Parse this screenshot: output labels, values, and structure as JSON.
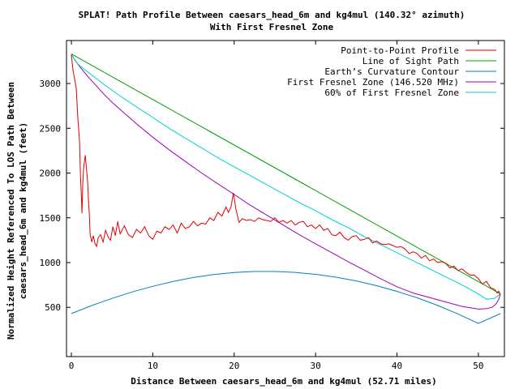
{
  "chart_data": {
    "type": "line",
    "title_line1": "SPLAT! Path Profile Between caesars_head_6m and kg4mul (140.32° azimuth)",
    "title_line2": "With First Fresnel Zone",
    "xlabel": "Distance Between caesars_head_6m and kg4mul (52.71 miles)",
    "ylabel_line1": "Normalized Height Referenced To LOS Path Between",
    "ylabel_line2": "caesars_head_6m and kg4mul (feet)",
    "xlim": [
      -0.6,
      53.2
    ],
    "ylim": [
      -50,
      3480
    ],
    "xticks": [
      0,
      10,
      20,
      30,
      40,
      50
    ],
    "yticks": [
      500,
      1000,
      1500,
      2000,
      2500,
      3000
    ],
    "legend_position": "top-right",
    "series": [
      {
        "name": "Point-to-Point Profile",
        "color": "#e00000",
        "x": [
          0,
          0.2,
          0.4,
          0.6,
          0.8,
          1.0,
          1.1,
          1.2,
          1.3,
          1.4,
          1.5,
          1.7,
          1.9,
          2.0,
          2.1,
          2.2,
          2.3,
          2.5,
          2.7,
          2.9,
          3.1,
          3.3,
          3.6,
          3.9,
          4.2,
          4.5,
          4.8,
          5.1,
          5.4,
          5.7,
          6.0,
          6.5,
          7.0,
          7.5,
          8.0,
          8.5,
          9.0,
          9.5,
          10.0,
          10.5,
          11.0,
          11.5,
          12.0,
          12.5,
          13.0,
          13.5,
          14.0,
          14.5,
          15.0,
          15.5,
          16.0,
          16.5,
          17.0,
          17.5,
          18.0,
          18.5,
          19.0,
          19.3,
          19.6,
          19.9,
          20.2,
          20.6,
          21.0,
          21.5,
          22.0,
          22.5,
          23.0,
          23.5,
          24.0,
          24.5,
          25.0,
          25.5,
          26.0,
          26.5,
          27.0,
          27.5,
          28.0,
          28.5,
          29.0,
          29.5,
          30.0,
          30.5,
          31.0,
          31.5,
          32.0,
          32.5,
          33.0,
          33.5,
          34.0,
          34.5,
          35.0,
          35.5,
          36.0,
          36.5,
          37.0,
          37.5,
          38.0,
          38.5,
          39.0,
          39.5,
          40.0,
          40.5,
          41.0,
          41.5,
          42.0,
          42.5,
          43.0,
          43.5,
          44.0,
          44.5,
          45.0,
          45.5,
          46.0,
          46.5,
          47.0,
          47.5,
          48.0,
          48.5,
          49.0,
          49.5,
          50.0,
          50.5,
          51.0,
          51.5,
          52.0,
          52.3,
          52.5,
          52.71
        ],
        "y": [
          3320,
          3150,
          3050,
          2950,
          2600,
          2350,
          2000,
          1800,
          1550,
          1900,
          2050,
          2200,
          2000,
          1900,
          1700,
          1550,
          1320,
          1230,
          1300,
          1210,
          1180,
          1280,
          1310,
          1230,
          1360,
          1290,
          1250,
          1400,
          1300,
          1460,
          1320,
          1410,
          1310,
          1280,
          1370,
          1330,
          1400,
          1300,
          1260,
          1350,
          1330,
          1400,
          1370,
          1420,
          1330,
          1440,
          1380,
          1400,
          1460,
          1410,
          1440,
          1430,
          1500,
          1470,
          1560,
          1520,
          1620,
          1560,
          1620,
          1780,
          1600,
          1450,
          1490,
          1470,
          1480,
          1460,
          1500,
          1480,
          1470,
          1460,
          1500,
          1450,
          1470,
          1440,
          1470,
          1420,
          1450,
          1460,
          1400,
          1420,
          1380,
          1420,
          1360,
          1380,
          1310,
          1300,
          1340,
          1280,
          1250,
          1290,
          1300,
          1250,
          1260,
          1280,
          1220,
          1240,
          1210,
          1200,
          1210,
          1190,
          1170,
          1180,
          1150,
          1100,
          1120,
          1100,
          1050,
          1080,
          1020,
          1040,
          1000,
          1010,
          990,
          940,
          960,
          910,
          930,
          890,
          860,
          860,
          820,
          760,
          790,
          720,
          700,
          660,
          680,
          640
        ]
      },
      {
        "name": "Line of Sight Path",
        "color": "#00a000",
        "x": [
          0,
          52.71
        ],
        "y": [
          3330,
          650
        ]
      },
      {
        "name": "Earth’s Curvature Contour",
        "color": "#0080c0",
        "x": [
          0,
          2.5,
          5,
          7.5,
          10,
          12.5,
          15,
          17.5,
          20,
          22.5,
          25,
          27.5,
          30,
          32.5,
          35,
          37.5,
          40,
          42.5,
          45,
          47.5,
          50,
          52.71
        ],
        "y": [
          430,
          520,
          600,
          672,
          735,
          789,
          833,
          867,
          889,
          900,
          900,
          890,
          869,
          837,
          795,
          742,
          679,
          606,
          521,
          426,
          320,
          430
        ]
      },
      {
        "name": "First Fresnel Zone (146.520 MHz)",
        "color": "#a000c0",
        "x": [
          0,
          0.3,
          1,
          2,
          3,
          4,
          5,
          6,
          8,
          10,
          12,
          14,
          16,
          18,
          20,
          22,
          24,
          26,
          28,
          30,
          32,
          34,
          36,
          38,
          40,
          42,
          44,
          46,
          48,
          50,
          51,
          51.7,
          52.2,
          52.5,
          52.71
        ],
        "y": [
          3330,
          3280,
          3190,
          3080,
          2980,
          2880,
          2790,
          2710,
          2550,
          2400,
          2260,
          2130,
          2000,
          1880,
          1760,
          1640,
          1530,
          1420,
          1310,
          1210,
          1110,
          1010,
          915,
          820,
          730,
          660,
          610,
          560,
          510,
          480,
          485,
          500,
          540,
          590,
          650
        ]
      },
      {
        "name": "60% of First Fresnel Zone",
        "color": "#00d0d0",
        "x": [
          0,
          0.5,
          1,
          2,
          3,
          4,
          6,
          8,
          10,
          12,
          14,
          16,
          18,
          20,
          22,
          24,
          26,
          28,
          30,
          32,
          34,
          36,
          38,
          40,
          42,
          44,
          46,
          48,
          50,
          51,
          52,
          52.71
        ],
        "y": [
          3330,
          3250,
          3200,
          3130,
          3060,
          2990,
          2860,
          2740,
          2620,
          2500,
          2390,
          2280,
          2170,
          2070,
          1970,
          1870,
          1770,
          1670,
          1580,
          1480,
          1390,
          1290,
          1200,
          1110,
          1020,
          930,
          840,
          750,
          650,
          590,
          600,
          650
        ]
      }
    ]
  }
}
